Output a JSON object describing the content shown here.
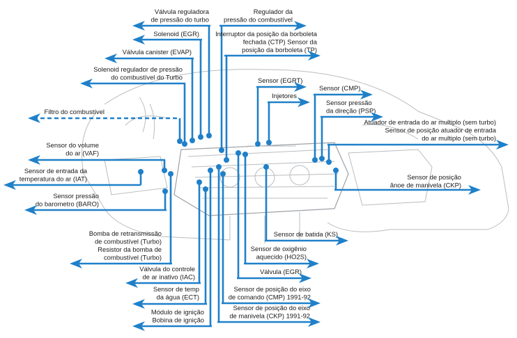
{
  "labels": [
    {
      "lines": [
        "Válvula reguladora",
        "de pressão do turbo"
      ]
    },
    {
      "lines": [
        "Regulador da",
        "pressão do combustível"
      ]
    },
    {
      "lines": [
        "Solenoid (EGR)"
      ]
    },
    {
      "lines": [
        "Interruptor da posição da borboleta",
        "fechada (CTP)  Sensor da",
        "posição da borboleta (TP)"
      ]
    },
    {
      "lines": [
        "Válvula canister (EVAP)"
      ]
    },
    {
      "lines": [
        "Solenoid regulador de pressão",
        "do combustível do Turbo"
      ]
    },
    {
      "lines": [
        "Filtro do combustível"
      ]
    },
    {
      "lines": [
        "Sensor do volume",
        "do ar (VAF)"
      ]
    },
    {
      "lines": [
        "Sensor de entrada da",
        "temperatura do ar (IAT)"
      ]
    },
    {
      "lines": [
        "Sensor pressão",
        "do barometro (BARO)"
      ]
    },
    {
      "lines": [
        "Bomba de retransmissão",
        "de combustível (Turbo)",
        "Resistor da bomba de",
        "combustível (Turbo)"
      ]
    },
    {
      "lines": [
        "Válvula do controle",
        "de ar inativo (IAC)"
      ]
    },
    {
      "lines": [
        "Sensor de temp",
        "da água (ECT)"
      ]
    },
    {
      "lines": [
        "Módulo de ignição",
        "Bobina de ignição"
      ]
    },
    {
      "lines": [
        "Sensor (EGRT)"
      ]
    },
    {
      "lines": [
        "Sensor (CMP)"
      ]
    },
    {
      "lines": [
        "Injetores"
      ]
    },
    {
      "lines": [
        "Sensor pressão",
        "da direção (PSP)"
      ]
    },
    {
      "lines": [
        "Atuador de entrada do ar multiplo (sem turbo)",
        "Sensor de posição atuador de entrada",
        "do ar multiplo (sem turbo)"
      ]
    },
    {
      "lines": [
        "Sensor de posição",
        "ânoe de manivela (CKP)"
      ]
    },
    {
      "lines": [
        "Sensor de batida (KS)"
      ]
    },
    {
      "lines": [
        "Sensor de oxigênio",
        "aquecido (HO2S)"
      ]
    },
    {
      "lines": [
        "Válvula (EGR)"
      ]
    },
    {
      "lines": [
        "Sensor de posição do eixo",
        "de comando (CMP) 1991-92"
      ]
    },
    {
      "lines": [
        "Sensor de posição do eixo",
        "de manivela (CKP) 1991-92"
      ]
    }
  ]
}
